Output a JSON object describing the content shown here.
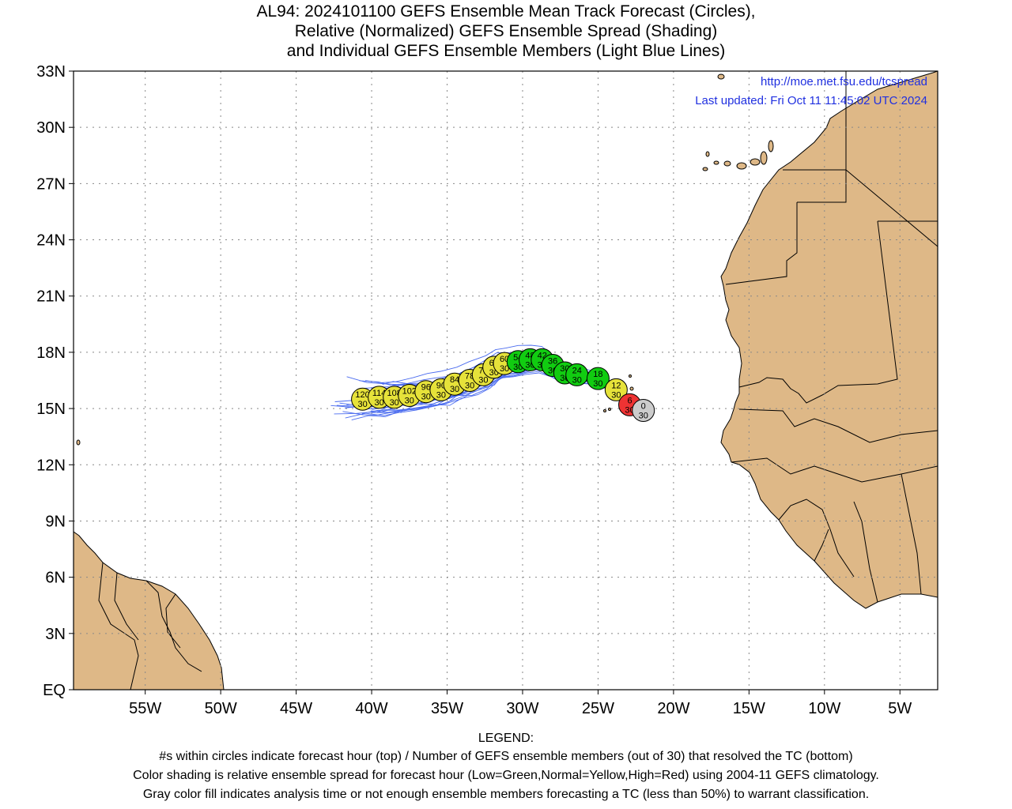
{
  "title": {
    "line1": "AL94: 2024101100 GEFS Ensemble Mean Track Forecast (Circles),",
    "line2": "Relative (Normalized) GEFS Ensemble Spread (Shading)",
    "line3": "and Individual GEFS Ensemble Members (Light Blue Lines)"
  },
  "credit": {
    "url": "http://moe.met.fsu.edu/tcspread",
    "updated": "Last updated: Fri Oct 11 11:45:02 UTC 2024"
  },
  "axes": {
    "lat_labels": [
      "33N",
      "30N",
      "27N",
      "24N",
      "21N",
      "18N",
      "15N",
      "12N",
      "9N",
      "6N",
      "3N",
      "EQ"
    ],
    "lat_values": [
      33,
      30,
      27,
      24,
      21,
      18,
      15,
      12,
      9,
      6,
      3,
      0
    ],
    "lon_labels": [
      "55W",
      "50W",
      "45W",
      "40W",
      "35W",
      "30W",
      "25W",
      "20W",
      "15W",
      "10W",
      "5W"
    ],
    "lon_values": [
      -55,
      -50,
      -45,
      -40,
      -35,
      -30,
      -25,
      -20,
      -15,
      -10,
      -5
    ],
    "lon_range": [
      -59.75,
      -2.5
    ],
    "lat_range": [
      0,
      33
    ]
  },
  "colors": {
    "land": "#deb887",
    "track_green": "#11cc11",
    "track_yellow": "#e6e23a",
    "track_red": "#ee3333",
    "track_gray": "#cccccc",
    "member_lines": "#4a6bef",
    "grid": "#888888"
  },
  "track": [
    {
      "hour": "0",
      "members": "30",
      "lon": -22.0,
      "lat": 14.9,
      "spread": "gray"
    },
    {
      "hour": "6",
      "members": "30",
      "lon": -22.9,
      "lat": 15.2,
      "spread": "red"
    },
    {
      "hour": "12",
      "members": "30",
      "lon": -23.8,
      "lat": 16.0,
      "spread": "yellow"
    },
    {
      "hour": "18",
      "members": "30",
      "lon": -25.0,
      "lat": 16.6,
      "spread": "green"
    },
    {
      "hour": "24",
      "members": "30",
      "lon": -26.4,
      "lat": 16.8,
      "spread": "green"
    },
    {
      "hour": "30",
      "members": "30",
      "lon": -27.2,
      "lat": 16.9,
      "spread": "green"
    },
    {
      "hour": "36",
      "members": "30",
      "lon": -28.0,
      "lat": 17.3,
      "spread": "green"
    },
    {
      "hour": "42",
      "members": "30",
      "lon": -28.7,
      "lat": 17.6,
      "spread": "green"
    },
    {
      "hour": "48",
      "members": "30",
      "lon": -29.5,
      "lat": 17.6,
      "spread": "green"
    },
    {
      "hour": "54",
      "members": "30",
      "lon": -30.3,
      "lat": 17.5,
      "spread": "green"
    },
    {
      "hour": "60",
      "members": "30",
      "lon": -31.2,
      "lat": 17.4,
      "spread": "yellow"
    },
    {
      "hour": "66",
      "members": "30",
      "lon": -31.9,
      "lat": 17.2,
      "spread": "yellow"
    },
    {
      "hour": "72",
      "members": "30",
      "lon": -32.6,
      "lat": 16.8,
      "spread": "yellow"
    },
    {
      "hour": "78",
      "members": "30",
      "lon": -33.5,
      "lat": 16.5,
      "spread": "yellow"
    },
    {
      "hour": "84",
      "members": "30",
      "lon": -34.5,
      "lat": 16.3,
      "spread": "yellow"
    },
    {
      "hour": "90",
      "members": "30",
      "lon": -35.4,
      "lat": 16.0,
      "spread": "yellow"
    },
    {
      "hour": "96",
      "members": "30",
      "lon": -36.4,
      "lat": 15.9,
      "spread": "yellow"
    },
    {
      "hour": "102",
      "members": "30",
      "lon": -37.5,
      "lat": 15.7,
      "spread": "yellow"
    },
    {
      "hour": "108",
      "members": "30",
      "lon": -38.5,
      "lat": 15.6,
      "spread": "yellow"
    },
    {
      "hour": "114",
      "members": "30",
      "lon": -39.5,
      "lat": 15.6,
      "spread": "yellow"
    },
    {
      "hour": "120",
      "members": "30",
      "lon": -40.6,
      "lat": 15.5,
      "spread": "yellow"
    }
  ],
  "legend": {
    "heading": "LEGEND:",
    "line1": "#s within circles indicate forecast hour (top) / Number of GEFS ensemble members (out of 30) that resolved the TC (bottom)",
    "line2": "Color shading is relative ensemble spread for forecast hour (Low=Green,Normal=Yellow,High=Red) using 2004-11 GEFS climatology.",
    "line3": "Gray color fill indicates analysis time or not enough ensemble members forecasting a TC (less than 50%) to warrant classification."
  }
}
